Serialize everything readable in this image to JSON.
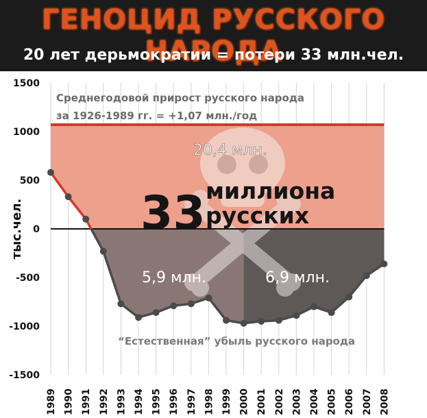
{
  "header": {
    "title": "ГЕНОЦИД РУССКОГО НАРОДА",
    "subtitle": "20 лет дерьмократии = потери 33 млн.чел."
  },
  "colors": {
    "header_bg": "#1b1b1b",
    "title": "#e0531e",
    "growth_fill": "#eda08b",
    "growth_line": "#d3382d",
    "loss_fill_left": "#8a7775",
    "loss_fill_right": "#5e5857",
    "data_line": "#4a4a4a",
    "annotation_text": "#6b6b6b"
  },
  "annotations": {
    "growth_note_line1": "Среднегодовой прирост русского народа",
    "growth_note_line2": "за 1926-1989 гг. = +1,07 млн./год",
    "growth_area_value": "20,4 млн.",
    "big_number": "33",
    "big_text_line1": "миллиона",
    "big_text_line2": "русских",
    "loss_left_value": "5,9 млн.",
    "loss_right_value": "6,9 млн.",
    "decline_note": "“Естественная” убыль русского народа"
  },
  "chart_data": {
    "type": "line",
    "title": "ГЕНОЦИД РУССКОГО НАРОДА",
    "subtitle": "20 лет дерьмократии = потери 33 млн.чел.",
    "xlabel": "",
    "ylabel": "тыс.чел.",
    "ylim": [
      -1500,
      1500
    ],
    "yticks": [
      1500,
      1000,
      500,
      0,
      -500,
      -1000,
      -1500
    ],
    "ytick_labels": [
      "1500",
      "1000",
      "500",
      "0",
      "-500",
      "-1000",
      "-1500"
    ],
    "reference_line": 1070,
    "grid": "vertical",
    "categories": [
      "1989",
      "1990",
      "1991",
      "1992",
      "1993",
      "1994",
      "1995",
      "1996",
      "1997",
      "1998",
      "1999",
      "2000",
      "2001",
      "2002",
      "2003",
      "2004",
      "2005",
      "2006",
      "2007",
      "2008"
    ],
    "series": [
      {
        "values": [
          580,
          330,
          100,
          -230,
          -770,
          -910,
          -860,
          -790,
          -770,
          -710,
          -940,
          -970,
          -950,
          -940,
          -890,
          -800,
          -860,
          -700,
          -480,
          -360
        ]
      }
    ]
  }
}
